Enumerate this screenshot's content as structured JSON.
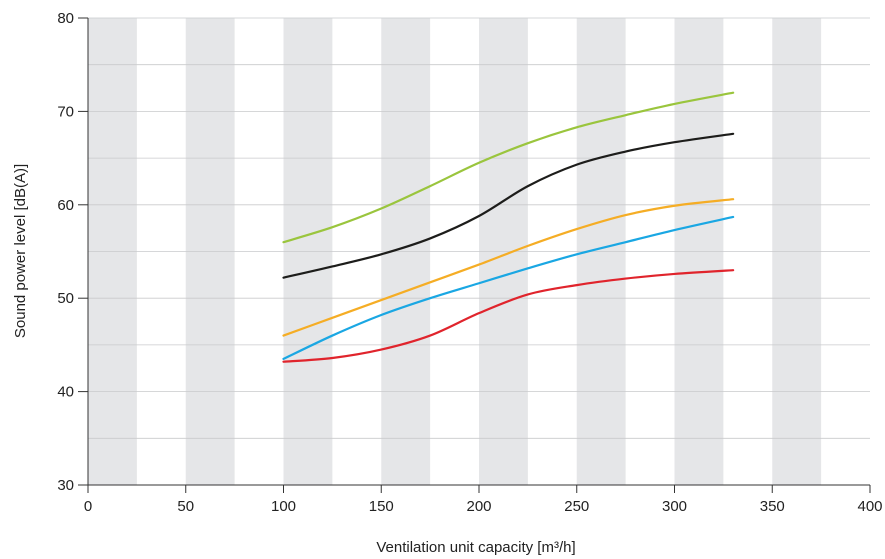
{
  "chart_data": {
    "type": "line",
    "xlabel": "Ventilation unit capacity [m³/h]",
    "ylabel": "Sound power level [dB(A)]",
    "xlim": [
      0,
      400
    ],
    "ylim": [
      30,
      80
    ],
    "x_ticks": [
      0,
      50,
      100,
      150,
      200,
      250,
      300,
      350,
      400
    ],
    "y_ticks": [
      30,
      40,
      50,
      60,
      70,
      80
    ],
    "x_tick_labels": [
      "0",
      "50",
      "100",
      "150",
      "200",
      "250",
      "300",
      "350",
      "400"
    ],
    "y_tick_labels": [
      "30",
      "40",
      "50",
      "60",
      "70",
      "80"
    ],
    "background_bands": [
      [
        0,
        25
      ],
      [
        50,
        75
      ],
      [
        100,
        125
      ],
      [
        150,
        175
      ],
      [
        200,
        225
      ],
      [
        250,
        275
      ],
      [
        300,
        325
      ],
      [
        350,
        375
      ]
    ],
    "band_color": "#e5e6e8",
    "grid": true,
    "grid_step_y": 5,
    "series": [
      {
        "color": "#9ac53d",
        "x": [
          100,
          125,
          150,
          175,
          200,
          225,
          250,
          275,
          300,
          330
        ],
        "values": [
          56.0,
          57.6,
          59.6,
          62.0,
          64.5,
          66.6,
          68.3,
          69.6,
          70.8,
          72.0
        ]
      },
      {
        "color": "#1d1d1b",
        "x": [
          100,
          125,
          150,
          175,
          200,
          225,
          250,
          275,
          300,
          330
        ],
        "values": [
          52.2,
          53.4,
          54.7,
          56.4,
          58.8,
          62.0,
          64.3,
          65.7,
          66.7,
          67.6
        ]
      },
      {
        "color": "#f5ad25",
        "x": [
          100,
          125,
          150,
          175,
          200,
          225,
          250,
          275,
          300,
          330
        ],
        "values": [
          46.0,
          47.9,
          49.8,
          51.7,
          53.6,
          55.6,
          57.4,
          58.9,
          59.9,
          60.6
        ]
      },
      {
        "color": "#1aa7e3",
        "x": [
          100,
          125,
          150,
          175,
          200,
          225,
          250,
          275,
          300,
          330
        ],
        "values": [
          43.5,
          46.0,
          48.2,
          50.0,
          51.6,
          53.2,
          54.7,
          56.0,
          57.3,
          58.7
        ]
      },
      {
        "color": "#e0242c",
        "x": [
          100,
          125,
          150,
          175,
          200,
          225,
          250,
          275,
          300,
          330
        ],
        "values": [
          43.2,
          43.6,
          44.5,
          46.0,
          48.4,
          50.4,
          51.4,
          52.1,
          52.6,
          53.0
        ]
      }
    ]
  }
}
